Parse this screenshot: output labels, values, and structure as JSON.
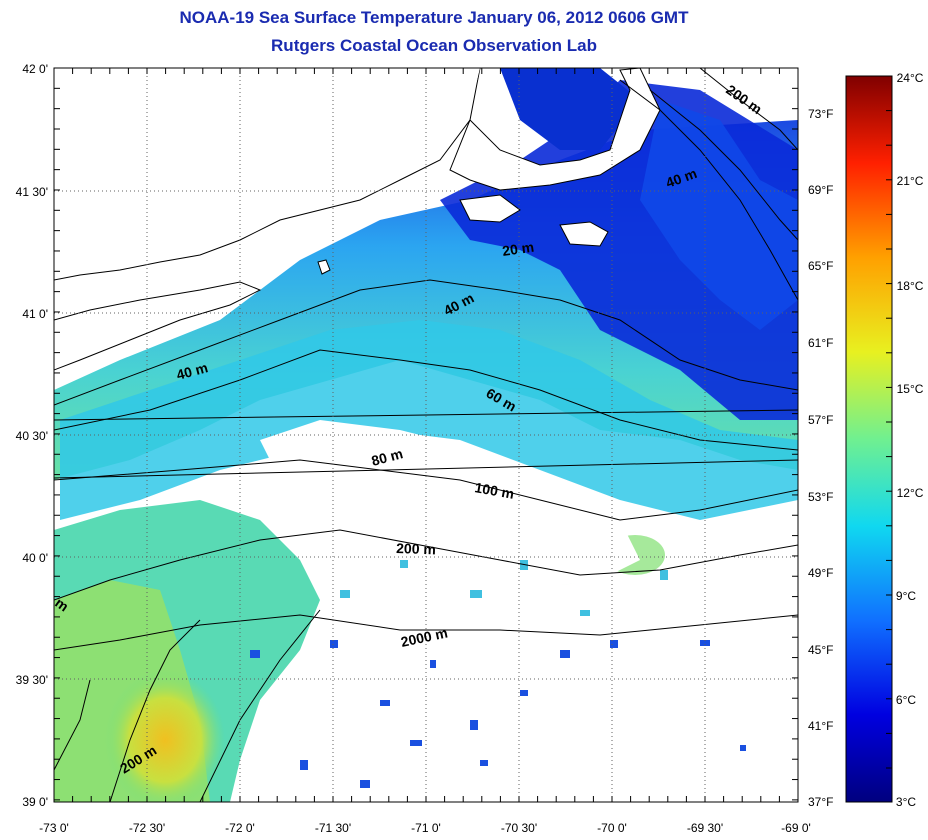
{
  "title": "NOAA-19 Sea Surface Temperature January 06, 2012 0606 GMT",
  "subtitle": "Rutgers Coastal Ocean Observation Lab",
  "map": {
    "lon_range": [
      -73.0,
      -69.0
    ],
    "lat_range": [
      39.0,
      42.0
    ],
    "lat_labels": [
      "42 0'",
      "41 30'",
      "41 0'",
      "40 30'",
      "40 0'",
      "39 30'",
      "39 0'"
    ],
    "lon_labels": [
      "-73 0'",
      "-72 30'",
      "-72 0'",
      "-71 30'",
      "-71 0'",
      "-70 30'",
      "-70 0'",
      "-69 30'",
      "-69 0'"
    ],
    "depth_labels": [
      "200 m",
      "40 m",
      "20 m",
      "40 m",
      "40 m",
      "60 m",
      "80 m",
      "100 m",
      "200 m",
      "2000 m",
      "200 m",
      "m"
    ]
  },
  "colorbar": {
    "celsius_labels": [
      "24°C",
      "21°C",
      "18°C",
      "15°C",
      "12°C",
      "9°C",
      "6°C",
      "3°C"
    ],
    "fahrenheit_labels": [
      "73°F",
      "69°F",
      "65°F",
      "61°F",
      "57°F",
      "53°F",
      "49°F",
      "45°F",
      "41°F",
      "37°F"
    ],
    "colors": [
      "#800000",
      "#ff4000",
      "#ffcc00",
      "#e6f020",
      "#60f0a0",
      "#10d0e8",
      "#2080ff",
      "#0010c8",
      "#00007f"
    ]
  }
}
